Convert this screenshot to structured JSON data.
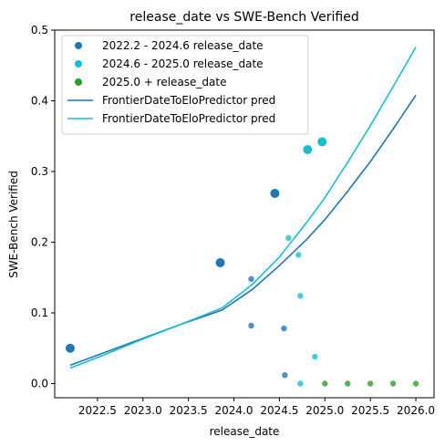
{
  "chart_data": {
    "type": "scatter",
    "title": "release_date vs SWE-Bench Verified",
    "xlabel": "release_date",
    "ylabel": "SWE-Bench Verified",
    "xlim": [
      2022.03,
      2026.2
    ],
    "ylim": [
      -0.02,
      0.5
    ],
    "xticks": [
      2022.5,
      2023.0,
      2023.5,
      2024.0,
      2024.5,
      2025.0,
      2025.5,
      2026.0
    ],
    "xtick_labels": [
      "2022.5",
      "2023.0",
      "2023.5",
      "2024.0",
      "2024.5",
      "2025.0",
      "2025.5",
      "2026.0"
    ],
    "yticks": [
      0.0,
      0.1,
      0.2,
      0.3,
      0.4,
      0.5
    ],
    "ytick_labels": [
      "0.0",
      "0.1",
      "0.2",
      "0.3",
      "0.4",
      "0.5"
    ],
    "legend_position": "upper-left",
    "grid": false,
    "series": [
      {
        "name": "2022.2 - 2024.6 release_date",
        "kind": "scatter",
        "color": "#1f77b4",
        "points": [
          {
            "x": 2022.2,
            "y": 0.05,
            "size": "large"
          },
          {
            "x": 2023.85,
            "y": 0.171,
            "size": "large"
          },
          {
            "x": 2024.45,
            "y": 0.269,
            "size": "large"
          },
          {
            "x": 2024.19,
            "y": 0.148,
            "size": "small"
          },
          {
            "x": 2024.19,
            "y": 0.082,
            "size": "small"
          },
          {
            "x": 2024.55,
            "y": 0.078,
            "size": "small"
          },
          {
            "x": 2024.56,
            "y": 0.012,
            "size": "small"
          }
        ]
      },
      {
        "name": "2024.6 - 2025.0 release_date",
        "kind": "scatter",
        "color": "#17becf",
        "points": [
          {
            "x": 2024.81,
            "y": 0.331,
            "size": "large"
          },
          {
            "x": 2024.97,
            "y": 0.342,
            "size": "large"
          },
          {
            "x": 2024.6,
            "y": 0.206,
            "size": "small"
          },
          {
            "x": 2024.71,
            "y": 0.182,
            "size": "small"
          },
          {
            "x": 2024.73,
            "y": 0.124,
            "size": "small"
          },
          {
            "x": 2024.89,
            "y": 0.038,
            "size": "small"
          },
          {
            "x": 2024.73,
            "y": 0.0,
            "size": "small"
          }
        ]
      },
      {
        "name": "2025.0 + release_date",
        "kind": "scatter",
        "color": "#2ca02c",
        "points": [
          {
            "x": 2025.0,
            "y": 0.0,
            "size": "small"
          },
          {
            "x": 2025.25,
            "y": 0.0,
            "size": "small"
          },
          {
            "x": 2025.5,
            "y": 0.0,
            "size": "small"
          },
          {
            "x": 2025.75,
            "y": 0.0,
            "size": "small"
          },
          {
            "x": 2026.0,
            "y": 0.0,
            "size": "small"
          }
        ]
      },
      {
        "name": "FrontierDateToEloPredictor pred",
        "kind": "line",
        "color": "#1f77b4",
        "points": [
          {
            "x": 2022.2,
            "y": 0.026
          },
          {
            "x": 2022.6,
            "y": 0.045
          },
          {
            "x": 2023.0,
            "y": 0.064
          },
          {
            "x": 2023.4,
            "y": 0.083
          },
          {
            "x": 2023.87,
            "y": 0.104
          },
          {
            "x": 2024.2,
            "y": 0.133
          },
          {
            "x": 2024.5,
            "y": 0.167
          },
          {
            "x": 2024.8,
            "y": 0.204
          },
          {
            "x": 2025.0,
            "y": 0.232
          },
          {
            "x": 2025.25,
            "y": 0.272
          },
          {
            "x": 2025.5,
            "y": 0.314
          },
          {
            "x": 2025.75,
            "y": 0.36
          },
          {
            "x": 2026.0,
            "y": 0.408
          }
        ]
      },
      {
        "name": "FrontierDateToEloPredictor pred",
        "kind": "line",
        "color": "#17becf",
        "points": [
          {
            "x": 2022.2,
            "y": 0.022
          },
          {
            "x": 2022.6,
            "y": 0.042
          },
          {
            "x": 2023.0,
            "y": 0.063
          },
          {
            "x": 2023.4,
            "y": 0.083
          },
          {
            "x": 2023.87,
            "y": 0.107
          },
          {
            "x": 2024.2,
            "y": 0.14
          },
          {
            "x": 2024.5,
            "y": 0.179
          },
          {
            "x": 2024.8,
            "y": 0.228
          },
          {
            "x": 2025.0,
            "y": 0.263
          },
          {
            "x": 2025.25,
            "y": 0.313
          },
          {
            "x": 2025.5,
            "y": 0.365
          },
          {
            "x": 2025.75,
            "y": 0.42
          },
          {
            "x": 2026.0,
            "y": 0.476
          }
        ]
      }
    ]
  }
}
